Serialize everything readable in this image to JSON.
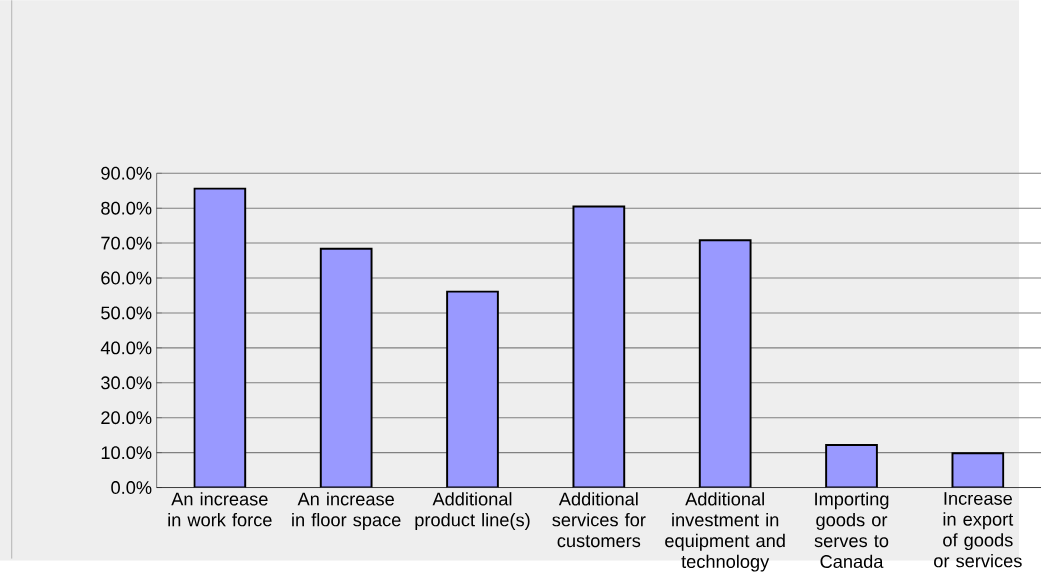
{
  "chart_data": {
    "type": "bar",
    "categories": [
      "An increase in work force",
      "An increase in floor space",
      "Additional product line(s)",
      "Additional services for customers",
      "Additional investment in equipment and technology",
      "Importing goods or serves to Canada",
      "Increase in export of goods or services"
    ],
    "values": [
      85.6,
      68.4,
      56.1,
      80.5,
      70.8,
      12.2,
      9.8
    ],
    "color": "#9999ff",
    "ylim": [
      0,
      90
    ],
    "yticks": [
      {
        "value": 0,
        "label": "0.0%"
      },
      {
        "value": 10,
        "label": "10.0%"
      },
      {
        "value": 20,
        "label": "20.0%"
      },
      {
        "value": 30,
        "label": "30.0%"
      },
      {
        "value": 40,
        "label": "40.0%"
      },
      {
        "value": 50,
        "label": "50.0%"
      },
      {
        "value": 60,
        "label": "60.0%"
      },
      {
        "value": 70,
        "label": "70.0%"
      },
      {
        "value": 80,
        "label": "80.0%"
      },
      {
        "value": 90,
        "label": "90.0%"
      }
    ],
    "grid": "y"
  }
}
